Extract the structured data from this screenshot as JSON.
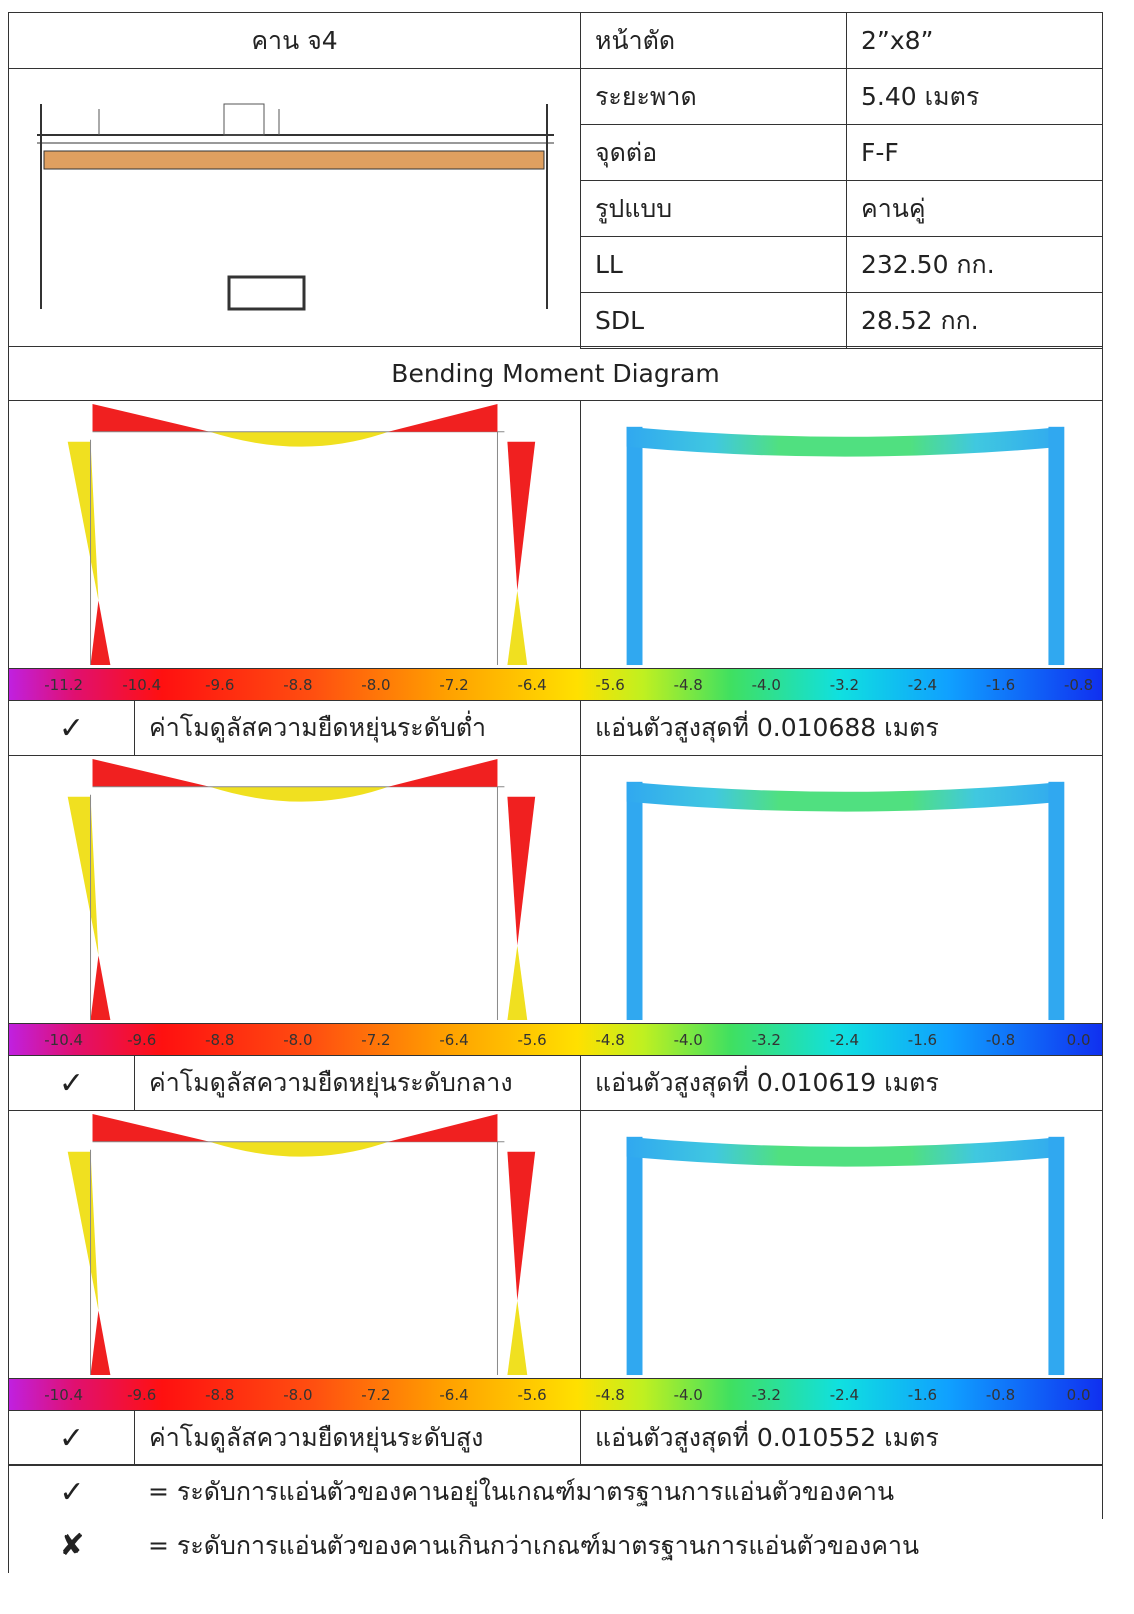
{
  "header": {
    "beam": "คาน จ4",
    "props": [
      [
        "หน้าตัด",
        "2”x8”"
      ],
      [
        "ระยะพาด",
        "5.40 เมตร"
      ],
      [
        "จุดต่อ",
        "F-F"
      ],
      [
        "รูปแบบ",
        "คานคู่"
      ],
      [
        "LL",
        "232.50 กก."
      ],
      [
        "SDL",
        "28.52 กก."
      ]
    ]
  },
  "section_title": "Bending Moment Diagram",
  "cases": [
    {
      "scale": [
        "-11.2",
        "-10.4",
        "-9.6",
        "-8.8",
        "-8.0",
        "-7.2",
        "-6.4",
        "-5.6",
        "-4.8",
        "-4.0",
        "-3.2",
        "-2.4",
        "-1.6",
        "-0.8"
      ],
      "check": "✓",
      "modulus": "ค่าโมดูลัสความยืดหยุ่นระดับต่ำ",
      "deflection": "แอ่นตัวสูงสุดที่ 0.010688 เมตร"
    },
    {
      "scale": [
        "-10.4",
        "-9.6",
        "-8.8",
        "-8.0",
        "-7.2",
        "-6.4",
        "-5.6",
        "-4.8",
        "-4.0",
        "-3.2",
        "-2.4",
        "-1.6",
        "-0.8",
        "0.0"
      ],
      "check": "✓",
      "modulus": "ค่าโมดูลัสความยืดหยุ่นระดับกลาง",
      "deflection": "แอ่นตัวสูงสุดที่ 0.010619 เมตร"
    },
    {
      "scale": [
        "-10.4",
        "-9.6",
        "-8.8",
        "-8.0",
        "-7.2",
        "-6.4",
        "-5.6",
        "-4.8",
        "-4.0",
        "-3.2",
        "-2.4",
        "-1.6",
        "-0.8",
        "0.0"
      ],
      "check": "✓",
      "modulus": "ค่าโมดูลัสความยืดหยุ่นระดับสูง",
      "deflection": "แอ่นตัวสูงสุดที่ 0.010552 เมตร"
    }
  ],
  "legend": [
    {
      "symbol": "✓",
      "text": "= ระดับการแอ่นตัวของคานอยู่ในเกณฑ์มาตรฐานการแอ่นตัวของคาน"
    },
    {
      "symbol": "✘",
      "text": "= ระดับการแอ่นตัวของคานเกินกว่าเกณฑ์มาตรฐานการแอ่นตัวของคาน"
    }
  ]
}
